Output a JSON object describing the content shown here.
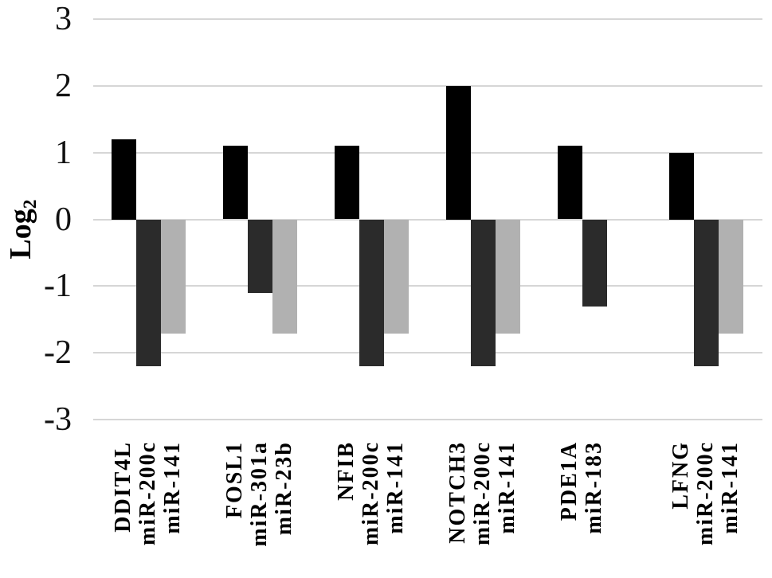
{
  "chart_data": {
    "type": "bar",
    "title": "",
    "ylabel_base": "Log",
    "ylabel_sub": "2",
    "xlabel": "",
    "ylim": [
      -3,
      3
    ],
    "yticks": [
      3,
      2,
      1,
      0,
      -1,
      -2,
      -3
    ],
    "grid": true,
    "legend_position": "none",
    "groups": [
      {
        "bars": [
          {
            "label": "DDIT4L",
            "value": 1.2,
            "color": "black"
          },
          {
            "label": "miR-200c",
            "value": -2.2,
            "color": "dark_gray"
          },
          {
            "label": "miR-141",
            "value": -1.7,
            "color": "light_gray"
          }
        ]
      },
      {
        "bars": [
          {
            "label": "FOSL1",
            "value": 1.1,
            "color": "black"
          },
          {
            "label": "miR-301a",
            "value": -1.1,
            "color": "dark_gray"
          },
          {
            "label": "miR-23b",
            "value": -1.7,
            "color": "light_gray"
          }
        ]
      },
      {
        "bars": [
          {
            "label": "NFIB",
            "value": 1.1,
            "color": "black"
          },
          {
            "label": "miR-200c",
            "value": -2.2,
            "color": "dark_gray"
          },
          {
            "label": "miR-141",
            "value": -1.7,
            "color": "light_gray"
          }
        ]
      },
      {
        "bars": [
          {
            "label": "NOTCH3",
            "value": 2.0,
            "color": "black"
          },
          {
            "label": "miR-200c",
            "value": -2.2,
            "color": "dark_gray"
          },
          {
            "label": "miR-141",
            "value": -1.7,
            "color": "light_gray"
          }
        ]
      },
      {
        "bars": [
          {
            "label": "PDE1A",
            "value": 1.1,
            "color": "black"
          },
          {
            "label": "miR-183",
            "value": -1.3,
            "color": "dark_gray"
          }
        ]
      },
      {
        "bars": [
          {
            "label": "LFNG",
            "value": 1.0,
            "color": "black"
          },
          {
            "label": "miR-200c",
            "value": -2.2,
            "color": "dark_gray"
          },
          {
            "label": "miR-141",
            "value": -1.7,
            "color": "light_gray"
          }
        ]
      }
    ],
    "colors": {
      "black": "#000000",
      "dark_gray": "#2b2b2b",
      "light_gray": "#b1b1b1",
      "gridline": "#d6d6d6",
      "text": "#000000"
    }
  }
}
